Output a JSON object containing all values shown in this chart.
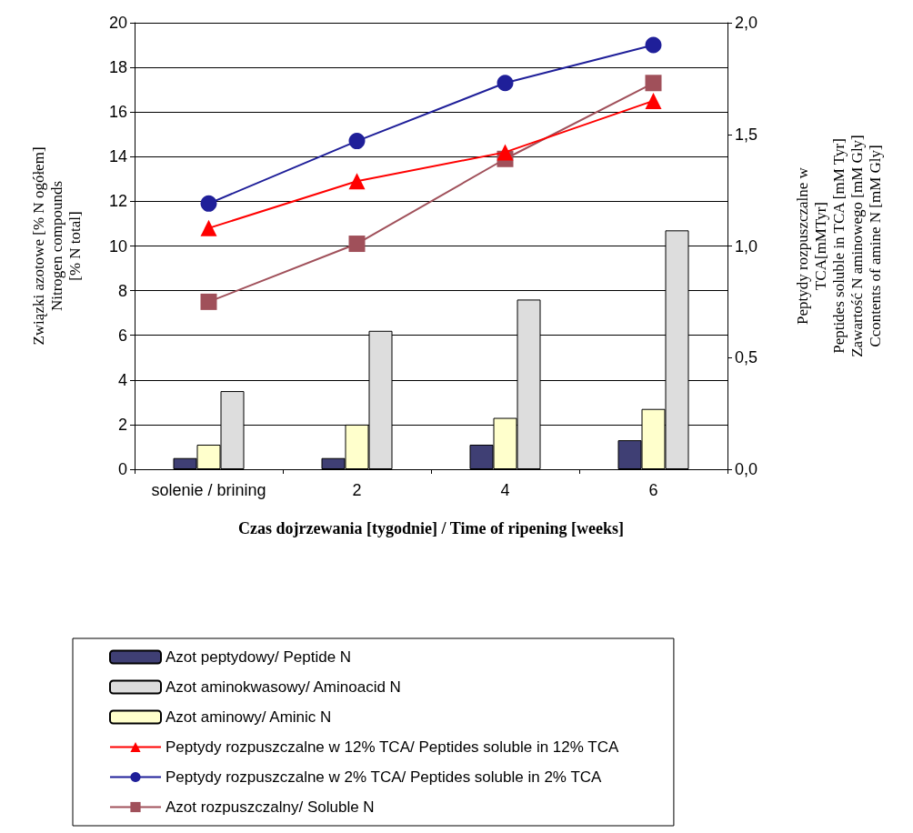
{
  "chart_data": {
    "type": "bar",
    "xlabel": "Czas dojrzewania [tygodnie] / Time of ripening [weeks]",
    "ylabel": "Związki azotowe [% N ogółem]\nNitrogen compounds\n[% N total]",
    "y2label": "Peptydy rozpuszczalne w\nTCA[mMTyr]\nPeptides soluble in TCA [mM Tyr]\nZawartość N aminowego [mM Gly]\nCcontents of amine N [mM Gly]",
    "categories": [
      "solenie / brining",
      "2",
      "4",
      "6"
    ],
    "ylim": [
      0,
      20
    ],
    "yticks": [
      0,
      2,
      4,
      6,
      8,
      10,
      12,
      14,
      16,
      18,
      20
    ],
    "y2lim": [
      0,
      2
    ],
    "y2ticks": [
      {
        "value": 0,
        "label": "0,0"
      },
      {
        "value": 0.5,
        "label": "0,5"
      },
      {
        "value": 1,
        "label": "1,0"
      },
      {
        "value": 1.5,
        "label": "1,5"
      },
      {
        "value": 2,
        "label": "2,0"
      }
    ],
    "grid": "y",
    "legend": "bottom",
    "series": [
      {
        "name": "Azot peptydowy/ Peptide N",
        "color": "#3f3f74",
        "values": [
          0.5,
          0.5,
          1.1,
          1.3
        ]
      },
      {
        "name": "Azot aminowy/ Aminic N",
        "color": "#ffffcc",
        "values": [
          1.1,
          2.0,
          2.3,
          2.7
        ]
      },
      {
        "name": "Azot aminokwasowy/ Aminoacid N",
        "color": "#dddddd",
        "values": [
          3.5,
          6.2,
          7.6,
          10.7
        ]
      },
      {
        "name": "Peptydy rozpuszczalne w 12% TCA/ Peptides soluble in 12% TCA",
        "type": "line",
        "axis": "y2",
        "marker": "triangle",
        "color": "#ff0000",
        "values": [
          1.08,
          1.29,
          1.42,
          1.65
        ]
      },
      {
        "name": "Peptydy rozpuszczalne w 2% TCA/ Peptides soluble in 2% TCA",
        "type": "line",
        "axis": "y2",
        "marker": "circle",
        "color": "#1f1f99",
        "values": [
          1.19,
          1.47,
          1.73,
          1.9
        ]
      },
      {
        "name": "Azot rozpuszczalny/ Soluble N",
        "type": "line",
        "axis": "y2",
        "marker": "square",
        "color": "#a0505a",
        "values": [
          0.75,
          1.01,
          1.39,
          1.73
        ]
      }
    ]
  }
}
